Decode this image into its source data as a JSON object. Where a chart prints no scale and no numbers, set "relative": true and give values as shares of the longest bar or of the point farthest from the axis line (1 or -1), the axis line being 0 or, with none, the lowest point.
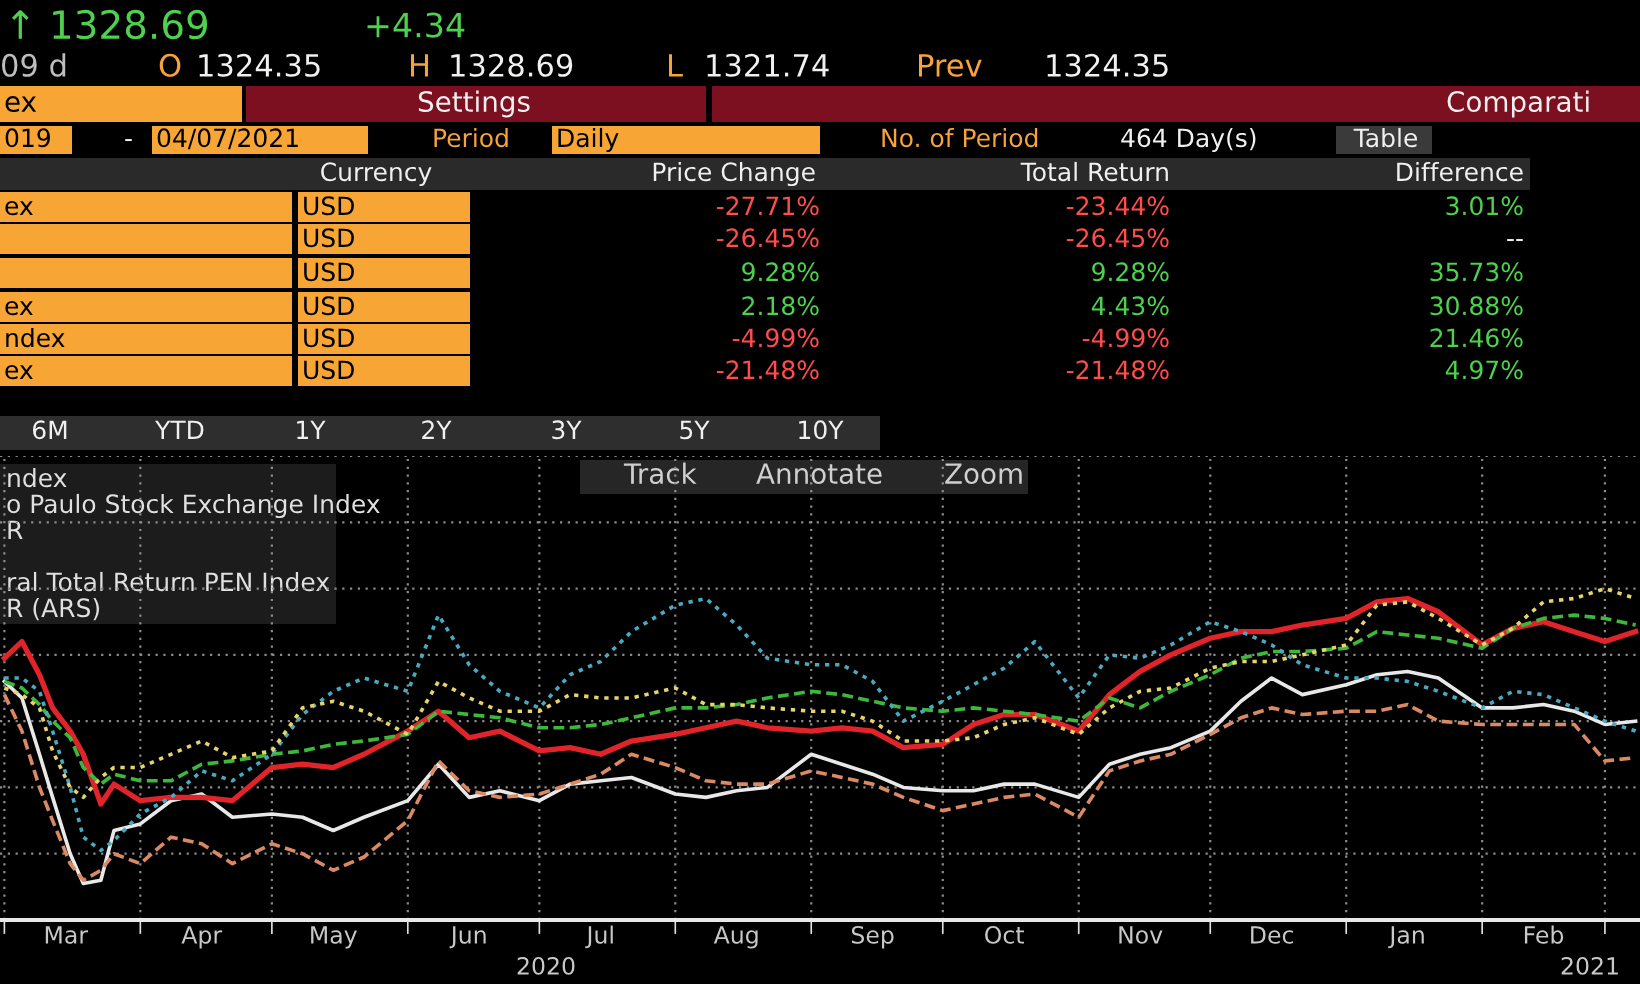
{
  "chart_data": [
    {
      "type": "other",
      "annotations": [
        "↑ 1328.69",
        "+4.34",
        "09 d",
        "O",
        "1324.35",
        "H",
        "1328.69",
        "L",
        "1321.74",
        "Prev",
        "1324.35",
        "ex",
        "Settings",
        "Comparati",
        "019",
        "-",
        "04/07/2021",
        "Period",
        "Daily",
        "No. of Period",
        "464 Day(s)",
        "Table",
        "Currency",
        "Price Change",
        "Total Return",
        "Difference",
        "ex",
        "USD",
        "-27.71%",
        "-23.44%",
        "3.01%",
        "USD",
        "-26.45%",
        "-26.45%",
        "--",
        "USD",
        "9.28%",
        "9.28%",
        "35.73%",
        "ex",
        "USD",
        "2.18%",
        "4.43%",
        "30.88%",
        "ndex",
        "USD",
        "-4.99%",
        "-4.99%",
        "21.46%",
        "ex",
        "USD",
        "-21.48%",
        "-21.48%",
        "4.97%",
        "6M",
        "YTD",
        "1Y",
        "2Y",
        "3Y",
        "5Y",
        "10Y"
      ]
    },
    {
      "type": "line",
      "relative": true,
      "grid": true,
      "annotations": [
        "ndex",
        "o Paulo Stock Exchange Index",
        "R",
        "ral Total Return PEN Index",
        "R (ARS)",
        "Track",
        "Annotate",
        "Zoom",
        "2020",
        "2021"
      ],
      "x": [
        "2020-03-01",
        "2020-03-05",
        "2020-03-09",
        "2020-03-12",
        "2020-03-16",
        "2020-03-19",
        "2020-03-23",
        "2020-03-26",
        "2020-04-01",
        "2020-04-08",
        "2020-04-15",
        "2020-04-22",
        "2020-05-01",
        "2020-05-08",
        "2020-05-15",
        "2020-05-22",
        "2020-06-01",
        "2020-06-08",
        "2020-06-15",
        "2020-06-22",
        "2020-07-01",
        "2020-07-08",
        "2020-07-15",
        "2020-07-22",
        "2020-08-01",
        "2020-08-08",
        "2020-08-15",
        "2020-08-22",
        "2020-09-01",
        "2020-09-08",
        "2020-09-15",
        "2020-09-22",
        "2020-10-01",
        "2020-10-08",
        "2020-10-15",
        "2020-10-22",
        "2020-11-01",
        "2020-11-08",
        "2020-11-15",
        "2020-11-22",
        "2020-12-01",
        "2020-12-08",
        "2020-12-15",
        "2020-12-22",
        "2021-01-01",
        "2021-01-08",
        "2021-01-15",
        "2021-01-22",
        "2021-02-01",
        "2021-02-08",
        "2021-02-15",
        "2021-02-22",
        "2021-03-01",
        "2021-03-08"
      ],
      "xlim": [
        "2020-02-29",
        "2021-03-09"
      ],
      "xticks": [
        {
          "value": "2020-03-01",
          "label": null
        },
        {
          "value": "2020-03-15",
          "label": "Mar"
        },
        {
          "value": "2020-04-01",
          "label": null
        },
        {
          "value": "2020-04-15",
          "label": "Apr"
        },
        {
          "value": "2020-05-01",
          "label": null
        },
        {
          "value": "2020-05-15",
          "label": "May"
        },
        {
          "value": "2020-06-01",
          "label": null
        },
        {
          "value": "2020-06-15",
          "label": "Jun"
        },
        {
          "value": "2020-07-01",
          "label": null
        },
        {
          "value": "2020-07-15",
          "label": "Jul"
        },
        {
          "value": "2020-08-01",
          "label": null
        },
        {
          "value": "2020-08-15",
          "label": "Aug"
        },
        {
          "value": "2020-09-01",
          "label": null
        },
        {
          "value": "2020-09-15",
          "label": "Sep"
        },
        {
          "value": "2020-10-01",
          "label": null
        },
        {
          "value": "2020-10-15",
          "label": "Oct"
        },
        {
          "value": "2020-11-01",
          "label": null
        },
        {
          "value": "2020-11-15",
          "label": "Nov"
        },
        {
          "value": "2020-12-01",
          "label": null
        },
        {
          "value": "2020-12-15",
          "label": "Dec"
        },
        {
          "value": "2021-01-01",
          "label": null
        },
        {
          "value": "2021-01-15",
          "label": "Jan"
        },
        {
          "value": "2021-02-01",
          "label": null
        },
        {
          "value": "2021-02-15",
          "label": "Feb"
        },
        {
          "value": "2021-03-01",
          "label": null
        }
      ],
      "series": [
        {
          "color": "#e8e8e8",
          "line_style": "solid",
          "values": [
            0.72,
            0.67,
            0.5,
            0.37,
            0.2,
            0.11,
            0.12,
            0.27,
            0.29,
            0.36,
            0.38,
            0.31,
            0.32,
            0.31,
            0.27,
            0.31,
            0.36,
            0.47,
            0.37,
            0.39,
            0.36,
            0.41,
            0.42,
            0.43,
            0.38,
            0.37,
            0.39,
            0.4,
            0.5,
            0.47,
            0.44,
            0.4,
            0.39,
            0.39,
            0.41,
            0.41,
            0.37,
            0.47,
            0.5,
            0.52,
            0.57,
            0.66,
            0.73,
            0.68,
            0.71,
            0.74,
            0.75,
            0.73,
            0.64,
            0.64,
            0.65,
            0.63,
            0.59,
            0.6
          ]
        },
        {
          "color": "#d98a64",
          "line_style": "dashed",
          "values": [
            0.68,
            0.57,
            0.4,
            0.3,
            0.17,
            0.12,
            0.15,
            0.2,
            0.17,
            0.25,
            0.23,
            0.17,
            0.23,
            0.2,
            0.15,
            0.19,
            0.3,
            0.48,
            0.39,
            0.37,
            0.38,
            0.41,
            0.44,
            0.5,
            0.46,
            0.42,
            0.41,
            0.41,
            0.45,
            0.43,
            0.41,
            0.37,
            0.33,
            0.35,
            0.37,
            0.38,
            0.31,
            0.45,
            0.48,
            0.5,
            0.56,
            0.61,
            0.64,
            0.62,
            0.63,
            0.63,
            0.65,
            0.6,
            0.59,
            0.59,
            0.59,
            0.59,
            0.48,
            0.49
          ]
        },
        {
          "color": "#e0242a",
          "line_style": "solid",
          "values": [
            0.79,
            0.84,
            0.74,
            0.64,
            0.57,
            0.5,
            0.35,
            0.41,
            0.36,
            0.37,
            0.37,
            0.36,
            0.46,
            0.47,
            0.46,
            0.5,
            0.57,
            0.63,
            0.55,
            0.57,
            0.51,
            0.52,
            0.5,
            0.54,
            0.56,
            0.58,
            0.6,
            0.58,
            0.57,
            0.58,
            0.57,
            0.52,
            0.53,
            0.59,
            0.62,
            0.62,
            0.57,
            0.68,
            0.75,
            0.8,
            0.85,
            0.87,
            0.87,
            0.89,
            0.91,
            0.96,
            0.97,
            0.93,
            0.83,
            0.88,
            0.9,
            0.87,
            0.84,
            0.87
          ]
        },
        {
          "color": "#3db83d",
          "line_style": "dashed",
          "values": [
            0.72,
            0.7,
            0.65,
            0.6,
            0.55,
            0.46,
            0.41,
            0.44,
            0.42,
            0.42,
            0.47,
            0.48,
            0.5,
            0.51,
            0.53,
            0.54,
            0.56,
            0.63,
            0.62,
            0.61,
            0.58,
            0.58,
            0.59,
            0.61,
            0.64,
            0.64,
            0.65,
            0.67,
            0.69,
            0.68,
            0.66,
            0.64,
            0.63,
            0.64,
            0.63,
            0.62,
            0.6,
            0.67,
            0.64,
            0.69,
            0.74,
            0.79,
            0.81,
            0.81,
            0.82,
            0.87,
            0.86,
            0.85,
            0.82,
            0.88,
            0.91,
            0.92,
            0.91,
            0.89
          ]
        },
        {
          "color": "#49a9c0",
          "line_style": "dotted",
          "values": [
            0.73,
            0.73,
            0.69,
            0.57,
            0.4,
            0.25,
            0.21,
            0.24,
            0.32,
            0.37,
            0.45,
            0.42,
            0.5,
            0.62,
            0.69,
            0.73,
            0.69,
            0.92,
            0.77,
            0.69,
            0.64,
            0.74,
            0.78,
            0.87,
            0.95,
            0.97,
            0.89,
            0.79,
            0.77,
            0.77,
            0.72,
            0.6,
            0.66,
            0.71,
            0.76,
            0.84,
            0.67,
            0.8,
            0.79,
            0.83,
            0.9,
            0.87,
            0.83,
            0.77,
            0.73,
            0.73,
            0.72,
            0.69,
            0.64,
            0.69,
            0.68,
            0.64,
            0.6,
            0.57
          ]
        },
        {
          "color": "#e6d36b",
          "line_style": "dotted",
          "values": [
            0.7,
            0.68,
            0.64,
            0.51,
            0.4,
            0.37,
            0.43,
            0.46,
            0.46,
            0.5,
            0.54,
            0.49,
            0.51,
            0.64,
            0.66,
            0.63,
            0.56,
            0.72,
            0.67,
            0.63,
            0.63,
            0.68,
            0.67,
            0.67,
            0.7,
            0.65,
            0.65,
            0.64,
            0.63,
            0.63,
            0.6,
            0.54,
            0.54,
            0.55,
            0.59,
            0.61,
            0.56,
            0.64,
            0.69,
            0.7,
            0.76,
            0.78,
            0.78,
            0.8,
            0.83,
            0.95,
            0.96,
            0.91,
            0.83,
            0.88,
            0.96,
            0.97,
            1.0,
            0.97
          ]
        }
      ]
    }
  ]
}
